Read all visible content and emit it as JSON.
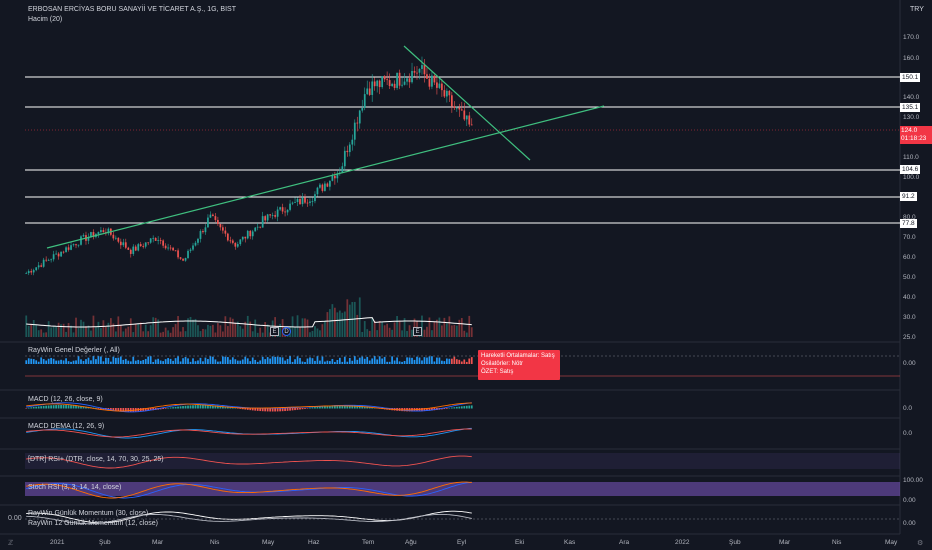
{
  "header": {
    "symbol": "ERBOSAN ERCİYAS BORU SANAYİİ VE TİCARET A.Ş., 1G, BIST",
    "volume_indicator": "Hacim (20)",
    "currency": "TRY"
  },
  "price_axis": {
    "labels": [
      "170.0",
      "160.0",
      "140.0",
      "130.0",
      "110.0",
      "100.0",
      "80.0",
      "70.0",
      "60.0",
      "50.0",
      "40.0",
      "30.0",
      "25.0"
    ],
    "levels": [
      "150.1",
      "135.1",
      "104.6",
      "91.2",
      "77.8"
    ],
    "current_price": "124.0",
    "countdown": "01:18:23"
  },
  "panes": {
    "raywin": "RayWin Genel Değerler (, All)",
    "macd": "MACD (12, 26, close, 9)",
    "macd_dema": "MACD DEMA (12, 26, 9)",
    "rsi": "[DTR] RSI+ (DTR, close, 14, 70, 30, 25, 25)",
    "stoch": "Stoch RSI (3, 3, 14, 14, close)",
    "momentum_1": "RayWin Günlük Momentum (30, close)",
    "momentum_2": "RayWin 12 Günlük Momentum (12, close)"
  },
  "pane_axis": {
    "raywin": "0.00",
    "macd": "0.0",
    "macd_dema": "0.0",
    "stoch_top": "100.00",
    "stoch_bottom": "0.00",
    "momentum_left": "0.00",
    "momentum_right": "0.00"
  },
  "tooltip": {
    "line1": "Hareketli Ortalamalar:     Satış",
    "line2": "Osilatörler: Nötr",
    "line3": "ÖZET:  Satış"
  },
  "time_axis": [
    "2021",
    "Şub",
    "Mar",
    "Nis",
    "May",
    "Haz",
    "Tem",
    "Ağu",
    "Eyl",
    "Eki",
    "Kas",
    "Ara",
    "2022",
    "Şub",
    "Mar",
    "Nis",
    "May"
  ],
  "event_badges": [
    "E",
    "E"
  ],
  "dividend_badge": "D",
  "colors": {
    "background": "#131722",
    "up": "#26a69a",
    "down": "#ef5350",
    "trendline": "#3fbf7f",
    "level_line": "#ffffff",
    "price_tag": "#f23645"
  },
  "chart_data": {
    "type": "candlestick",
    "title": "ERBOSAN ERCİYAS BORU SANAYİİ VE TİCARET A.Ş., 1G, BIST",
    "ylabel": "TRY",
    "ylim": [
      25,
      175
    ],
    "x_ticks": [
      "2021",
      "Şub",
      "Mar",
      "Nis",
      "May",
      "Haz",
      "Tem",
      "Ağu",
      "Eyl",
      "Eki",
      "Kas",
      "Ara",
      "2022",
      "Şub",
      "Mar",
      "Nis",
      "May"
    ],
    "horizontal_levels": [
      150.1,
      135.1,
      104.6,
      91.2,
      77.8
    ],
    "last_price": 124.0,
    "close_path": [
      {
        "date": "2021-01",
        "close": 52
      },
      {
        "date": "2021-01-mid",
        "close": 60
      },
      {
        "date": "2021-02",
        "close": 68
      },
      {
        "date": "2021-02-mid",
        "close": 74
      },
      {
        "date": "2021-03",
        "close": 63
      },
      {
        "date": "2021-03-mid",
        "close": 70
      },
      {
        "date": "2021-04",
        "close": 58
      },
      {
        "date": "2021-04-mid",
        "close": 80
      },
      {
        "date": "2021-05",
        "close": 66
      },
      {
        "date": "2021-05-mid",
        "close": 78
      },
      {
        "date": "2021-06",
        "close": 86
      },
      {
        "date": "2021-06-mid",
        "close": 92
      },
      {
        "date": "2021-07",
        "close": 105
      },
      {
        "date": "2021-07-mid",
        "close": 145
      },
      {
        "date": "2021-08",
        "close": 148
      },
      {
        "date": "2021-08-mid",
        "close": 154
      },
      {
        "date": "2021-09",
        "close": 140
      },
      {
        "date": "2021-09-mid",
        "close": 124
      }
    ]
  }
}
